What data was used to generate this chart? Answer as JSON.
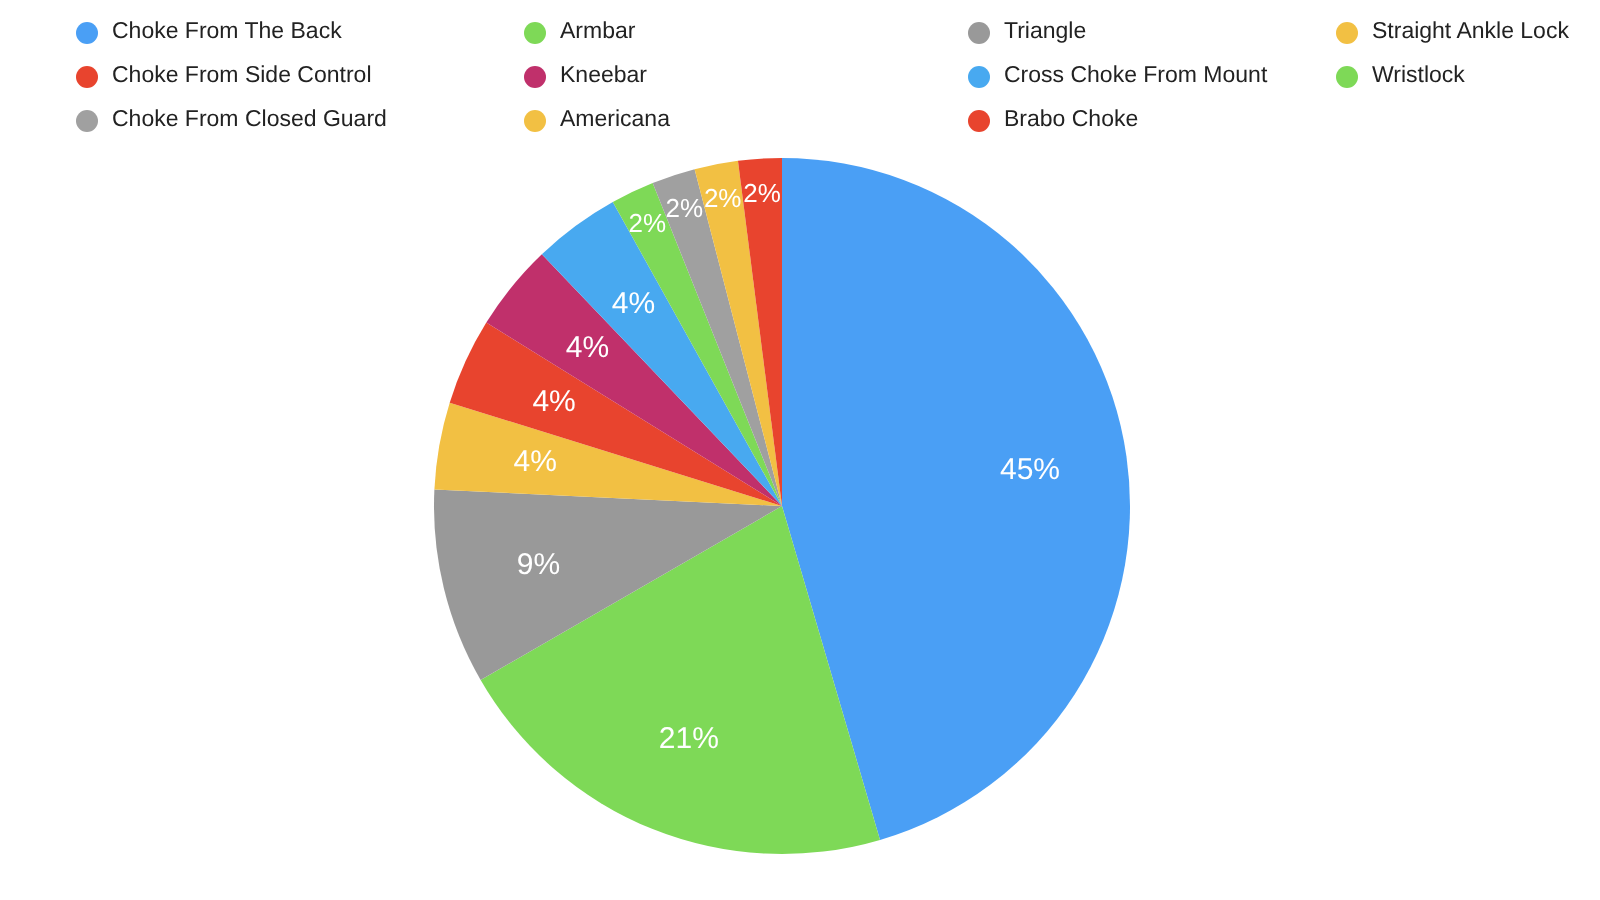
{
  "chart_data": {
    "type": "pie",
    "categories": [
      "Choke From The Back",
      "Armbar",
      "Triangle",
      "Straight Ankle Lock",
      "Choke From Side Control",
      "Kneebar",
      "Cross Choke From Mount",
      "Wristlock",
      "Choke From Closed Guard",
      "Americana",
      "Brabo Choke"
    ],
    "values": [
      45,
      21,
      9,
      4,
      4,
      4,
      4,
      2,
      2,
      2,
      2
    ],
    "value_labels": [
      "45%",
      "21%",
      "9%",
      "4%",
      "4%",
      "4%",
      "4%",
      "2%",
      "2%",
      "2%",
      "2%"
    ],
    "colors": [
      "#4a9ff5",
      "#7ed957",
      "#999999",
      "#f2c043",
      "#e8442e",
      "#c0306b",
      "#48a9f0",
      "#7ed957",
      "#a0a0a0",
      "#f2c043",
      "#e8442e"
    ],
    "legend": "top"
  }
}
